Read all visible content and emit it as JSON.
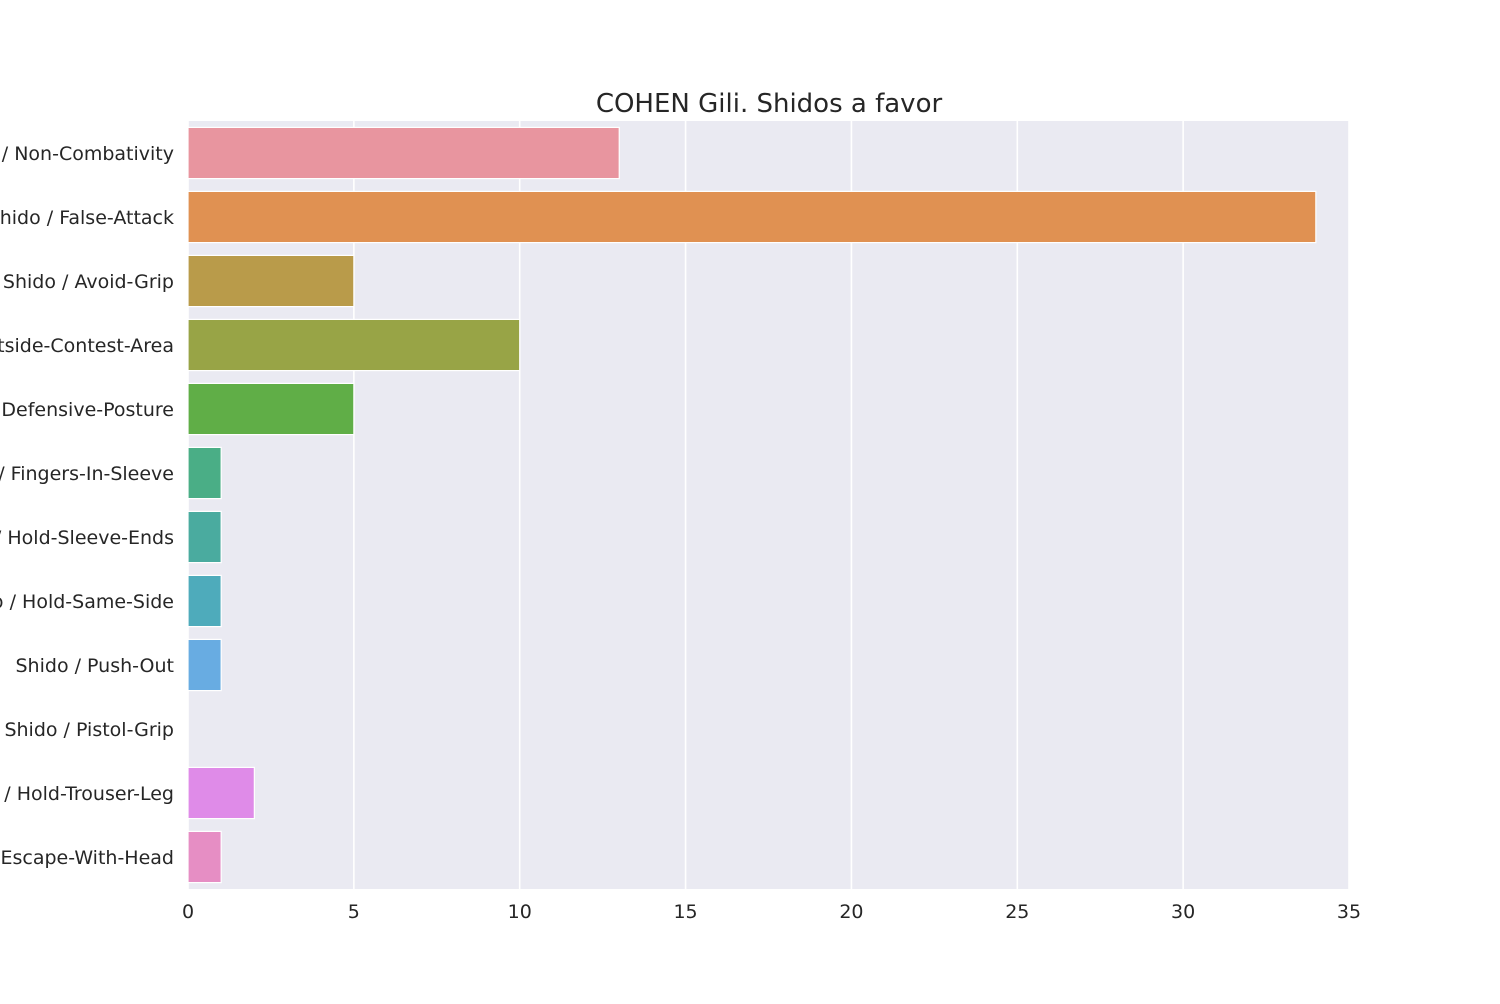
{
  "chart_data": {
    "type": "bar",
    "orientation": "horizontal",
    "title": "COHEN Gili. Shidos a favor",
    "xlabel": "",
    "ylabel": "",
    "xlim": [
      0,
      35
    ],
    "x_ticks": [
      0,
      5,
      10,
      15,
      20,
      25,
      30,
      35
    ],
    "grid": true,
    "categories": [
      "Shido / Non-Combativity",
      "Shido / False-Attack",
      "Shido / Avoid-Grip",
      "Shido / Outside-Contest-Area",
      "Shido / Defensive-Posture",
      "Shido / Fingers-In-Sleeve",
      "Shido / Hold-Sleeve-Ends",
      "Shido / Hold-Same-Side",
      "Shido / Push-Out",
      "Shido / Pistol-Grip",
      "Shido / Hold-Trouser-Leg",
      "Shido / Escape-With-Head"
    ],
    "values": [
      13,
      34,
      5,
      10,
      5,
      1,
      1,
      1,
      1,
      0,
      2,
      1
    ],
    "colors": [
      "#e8959f",
      "#e09152",
      "#b99b4a",
      "#98a446",
      "#60ae47",
      "#4aae86",
      "#4aab9f",
      "#4eabbb",
      "#68ace2",
      "#b09fe7",
      "#df8be8",
      "#e68ec4"
    ],
    "plot_background": "#eaeaf2",
    "grid_color": "#ffffff"
  }
}
